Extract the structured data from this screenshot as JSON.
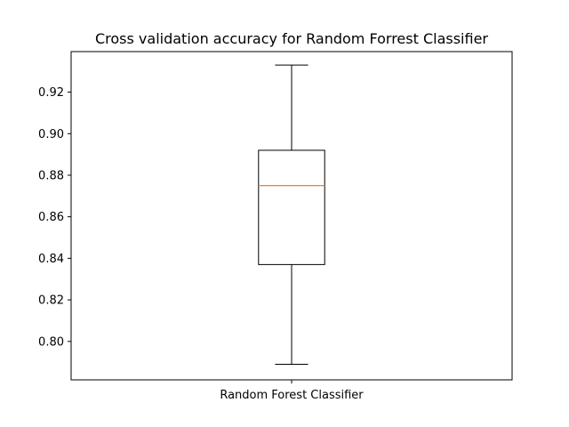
{
  "chart_data": {
    "type": "box",
    "title": "Cross validation accuracy for Random Forrest Classifier",
    "xlabel": "",
    "ylabel": "",
    "categories": [
      "Random Forest Classifier"
    ],
    "boxes": [
      {
        "label": "Random Forest Classifier",
        "whisker_low": 0.789,
        "q1": 0.837,
        "median": 0.875,
        "q3": 0.892,
        "whisker_high": 0.933
      }
    ],
    "ylim": [
      0.7815,
      0.9395
    ],
    "yticks": [
      0.8,
      0.82,
      0.84,
      0.86,
      0.88,
      0.9,
      0.92
    ],
    "ytick_labels": [
      "0.80",
      "0.82",
      "0.84",
      "0.86",
      "0.88",
      "0.90",
      "0.92"
    ],
    "grid": false,
    "colors": {
      "box": "#000000",
      "median": "#ff7f0e",
      "axes": "#000000",
      "background": "#ffffff"
    }
  }
}
